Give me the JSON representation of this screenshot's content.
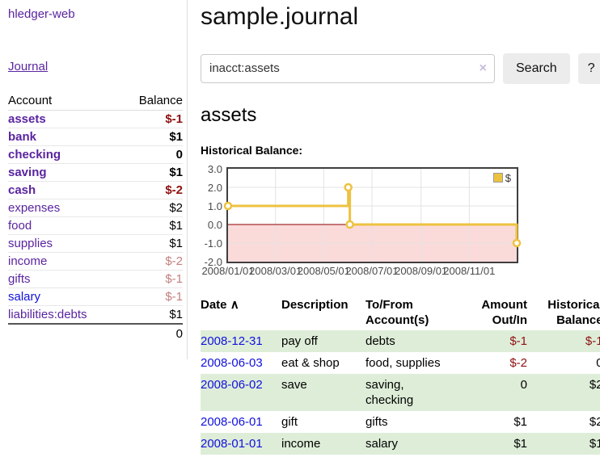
{
  "brand": "hledger-web",
  "nav": {
    "journal": "Journal"
  },
  "sidebar": {
    "col_account": "Account",
    "col_balance": "Balance",
    "accounts": [
      {
        "name": "assets",
        "balance": "$-1",
        "level": 1
      },
      {
        "name": "bank",
        "balance": "$1",
        "level": 2
      },
      {
        "name": "checking",
        "balance": "0",
        "level": 3
      },
      {
        "name": "saving",
        "balance": "$1",
        "level": 3
      },
      {
        "name": "cash",
        "balance": "$-2",
        "level": 2
      },
      {
        "name": "expenses",
        "balance": "$2",
        "level": 1
      },
      {
        "name": "food",
        "balance": "$1",
        "level": 2
      },
      {
        "name": "supplies",
        "balance": "$1",
        "level": 2
      },
      {
        "name": "income",
        "balance": "$-2",
        "level": 1
      },
      {
        "name": "gifts",
        "balance": "$-1",
        "level": 2
      },
      {
        "name": "salary",
        "balance": "$-1",
        "level": 2
      },
      {
        "name": "liabilities:debts",
        "balance": "$1",
        "level": 1
      }
    ],
    "total": "0"
  },
  "main": {
    "title": "sample.journal",
    "search": {
      "value": "inacct:assets",
      "clear_icon": "×",
      "button": "Search",
      "help": "?"
    },
    "account_heading": "assets",
    "chart_label": "Historical Balance:"
  },
  "chart_data": {
    "type": "line",
    "step": true,
    "title": "Historical Balance",
    "series": [
      {
        "name": "$",
        "color": "#edc240",
        "points": [
          [
            "2008-01-01",
            1
          ],
          [
            "2008-06-01",
            2
          ],
          [
            "2008-06-03",
            0
          ],
          [
            "2008-12-31",
            -1
          ]
        ]
      }
    ],
    "x_range": [
      "2008-01-01",
      "2008-12-31"
    ],
    "x_tick_dates": [
      "2008-01-01",
      "2008-03-01",
      "2008-05-01",
      "2008-07-01",
      "2008-09-01",
      "2008-11-01"
    ],
    "x_tick_labels": [
      "2008/01/01",
      "2008/03/01",
      "2008/05/01",
      "2008/07/01",
      "2008/09/01",
      "2008/11/01"
    ],
    "y_ticks": [
      3.0,
      2.0,
      1.0,
      0.0,
      -1.0,
      -2.0
    ],
    "y_tick_labels": [
      "3.0",
      "2.0",
      "1.0",
      "0.0",
      "-1.0",
      "-2.0"
    ],
    "ylim": [
      -2.0,
      3.0
    ],
    "grid": true,
    "legend": {
      "label": "$",
      "position": "top-right"
    },
    "negative_region": {
      "from": 0,
      "to": -2,
      "color": "#fbdada"
    },
    "zero_line_color": "#8b0000",
    "grid_color": "#e3e3e3"
  },
  "register": {
    "headers": {
      "date": "Date",
      "sort_icon": "∧",
      "description": "Description",
      "accounts": "To/From Account(s)",
      "amount": "Amount Out/In",
      "balance": "Historical Balance"
    },
    "rows": [
      {
        "date": "2008-12-31",
        "description": "pay off",
        "accounts": "debts",
        "amount": "$-1",
        "balance": "$-1"
      },
      {
        "date": "2008-06-03",
        "description": "eat & shop",
        "accounts": "food, supplies",
        "amount": "$-2",
        "balance": "0"
      },
      {
        "date": "2008-06-02",
        "description": "save",
        "accounts": "saving, checking",
        "amount": "0",
        "balance": "$2"
      },
      {
        "date": "2008-06-01",
        "description": "gift",
        "accounts": "gifts",
        "amount": "$1",
        "balance": "$2"
      },
      {
        "date": "2008-01-01",
        "description": "income",
        "accounts": "salary",
        "amount": "$1",
        "balance": "$1"
      }
    ]
  }
}
